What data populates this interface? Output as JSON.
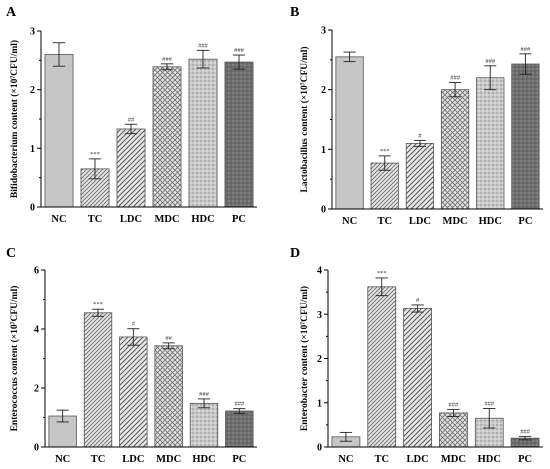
{
  "chart_data": [
    {
      "panel": "A",
      "type": "bar",
      "ylabel": "Bifidobacterium content (×10⁷CFU/ml)",
      "categories": [
        "NC",
        "TC",
        "LDC",
        "MDC",
        "HDC",
        "PC"
      ],
      "values": [
        2.6,
        0.65,
        1.33,
        2.39,
        2.52,
        2.47
      ],
      "errors": [
        0.2,
        0.17,
        0.08,
        0.05,
        0.15,
        0.12
      ],
      "significance": [
        "",
        "***",
        "##",
        "###",
        "###",
        "###"
      ],
      "ylim": [
        0,
        3
      ],
      "yticks": [
        "0",
        "1",
        "2",
        "3"
      ]
    },
    {
      "panel": "B",
      "type": "bar",
      "ylabel": "Lactobacillus content (×10⁷CFU/ml)",
      "categories": [
        "NC",
        "TC",
        "LDC",
        "MDC",
        "HDC",
        "PC"
      ],
      "values": [
        2.55,
        0.77,
        1.1,
        2.0,
        2.2,
        2.43
      ],
      "errors": [
        0.08,
        0.12,
        0.05,
        0.12,
        0.2,
        0.17
      ],
      "significance": [
        "",
        "***",
        "#",
        "###",
        "###",
        "###"
      ],
      "ylim": [
        0,
        3
      ],
      "yticks": [
        "0",
        "1",
        "2",
        "3"
      ]
    },
    {
      "panel": "C",
      "type": "bar",
      "ylabel": "Enterococcus content (×10⁷CFU/ml)",
      "categories": [
        "NC",
        "TC",
        "LDC",
        "MDC",
        "HDC",
        "PC"
      ],
      "values": [
        1.05,
        4.55,
        3.73,
        3.43,
        1.48,
        1.22
      ],
      "errors": [
        0.2,
        0.12,
        0.28,
        0.1,
        0.15,
        0.08
      ],
      "significance": [
        "",
        "***",
        "#",
        "##",
        "###",
        "###"
      ],
      "ylim": [
        0,
        6
      ],
      "yticks": [
        "0",
        "2",
        "4",
        "6"
      ]
    },
    {
      "panel": "D",
      "type": "bar",
      "ylabel": "Enterobacter content (×10⁷CFU/ml)",
      "categories": [
        "NC",
        "TC",
        "LDC",
        "MDC",
        "HDC",
        "PC"
      ],
      "values": [
        0.23,
        3.62,
        3.13,
        0.77,
        0.65,
        0.2
      ],
      "errors": [
        0.1,
        0.2,
        0.08,
        0.08,
        0.22,
        0.04
      ],
      "significance": [
        "",
        "***",
        "#",
        "###",
        "###",
        "###"
      ],
      "ylim": [
        0,
        4
      ],
      "yticks": [
        "0",
        "1",
        "2",
        "3",
        "4"
      ]
    }
  ],
  "bar_colors": [
    "#c4c4c4",
    "#d9d9d9",
    "#cfcfcf",
    "#dcdcdc",
    "#bdbdbd",
    "#7a7a7a"
  ]
}
